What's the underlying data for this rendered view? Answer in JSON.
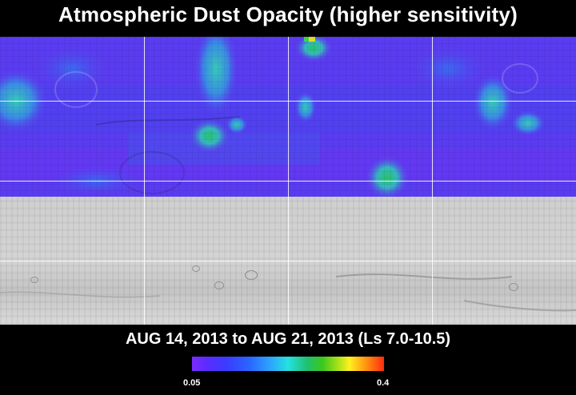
{
  "title": "Atmospheric Dust Opacity (higher sensitivity)",
  "date_range": "AUG 14, 2013 to AUG 21, 2013 (Ls 7.0-10.5)",
  "colorbar": {
    "min_label": "0.05",
    "max_label": "0.4",
    "colors": [
      "#7a2cff",
      "#3a3cff",
      "#2ca0ff",
      "#25e0e0",
      "#3cc81c",
      "#fff020",
      "#ff9a10",
      "#ff2a10"
    ]
  },
  "map": {
    "base_color": "#5a3cf0",
    "high_dust_color": "#30c8a0",
    "peak_dust_color": "#1fb04a"
  }
}
